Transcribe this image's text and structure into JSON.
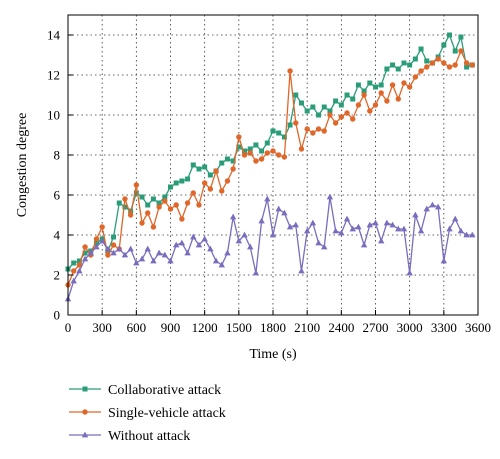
{
  "chart_data": {
    "type": "line",
    "title": "",
    "xlabel": "Time (s)",
    "ylabel": "Congestion degree",
    "xlim": [
      0,
      3600
    ],
    "ylim": [
      0,
      15
    ],
    "xticks": [
      0,
      300,
      600,
      900,
      1200,
      1500,
      1800,
      2100,
      2400,
      2700,
      3000,
      3300,
      3600
    ],
    "yticks": [
      0,
      2,
      4,
      6,
      8,
      10,
      12,
      14
    ],
    "grid": "dotted",
    "legend_position": "bottom",
    "x": [
      0,
      50,
      100,
      150,
      200,
      250,
      300,
      350,
      400,
      450,
      500,
      550,
      600,
      650,
      700,
      750,
      800,
      850,
      900,
      950,
      1000,
      1050,
      1100,
      1150,
      1200,
      1250,
      1300,
      1350,
      1400,
      1450,
      1500,
      1550,
      1600,
      1650,
      1700,
      1750,
      1800,
      1850,
      1900,
      1950,
      2000,
      2050,
      2100,
      2150,
      2200,
      2250,
      2300,
      2350,
      2400,
      2450,
      2500,
      2550,
      2600,
      2650,
      2700,
      2750,
      2800,
      2850,
      2900,
      2950,
      3000,
      3050,
      3100,
      3150,
      3200,
      3250,
      3300,
      3350,
      3400,
      3450,
      3500,
      3550
    ],
    "series": [
      {
        "name": "Collaborative attack",
        "color": "#2a9d78",
        "marker": "square",
        "values": [
          2.3,
          2.6,
          2.7,
          3.1,
          3.2,
          3.6,
          3.8,
          3.2,
          3.9,
          5.6,
          5.4,
          5.2,
          6.1,
          5.9,
          5.5,
          5.8,
          5.6,
          5.9,
          6.4,
          6.6,
          6.7,
          6.8,
          7.5,
          7.3,
          7.4,
          7.0,
          7.2,
          7.6,
          7.8,
          7.7,
          8.4,
          8.2,
          8.3,
          8.5,
          8.2,
          8.6,
          9.2,
          9.1,
          8.9,
          9.5,
          11.0,
          10.6,
          10.2,
          10.4,
          10.0,
          10.4,
          10.2,
          10.7,
          10.5,
          11.0,
          10.8,
          11.5,
          11.2,
          11.6,
          11.4,
          11.5,
          12.3,
          12.5,
          12.3,
          12.6,
          12.5,
          12.8,
          13.3,
          12.7,
          12.6,
          12.9,
          13.5,
          14.0,
          13.2,
          13.9,
          12.4,
          12.5
        ]
      },
      {
        "name": "Single-vehicle attack",
        "color": "#e0672a",
        "marker": "circle",
        "values": [
          1.5,
          2.2,
          2.5,
          3.4,
          3.0,
          3.8,
          4.4,
          3.0,
          3.5,
          3.3,
          5.8,
          5.0,
          6.5,
          4.6,
          5.1,
          4.4,
          5.4,
          5.7,
          5.3,
          5.5,
          4.8,
          5.6,
          6.1,
          5.5,
          6.6,
          6.3,
          7.2,
          6.2,
          6.7,
          7.3,
          8.9,
          8.0,
          8.1,
          7.7,
          7.8,
          8.1,
          8.2,
          8.0,
          7.9,
          12.2,
          9.6,
          8.3,
          9.3,
          9.1,
          9.3,
          9.2,
          10.0,
          9.6,
          9.9,
          10.1,
          9.8,
          10.5,
          11.0,
          10.2,
          10.5,
          11.1,
          10.7,
          11.5,
          10.8,
          11.6,
          11.4,
          11.9,
          12.2,
          12.4,
          12.6,
          12.8,
          12.6,
          12.4,
          12.5,
          13.2,
          12.6,
          12.5
        ]
      },
      {
        "name": "Without attack",
        "color": "#7b6dbd",
        "marker": "triangle",
        "values": [
          0.8,
          1.7,
          2.2,
          2.8,
          3.1,
          3.4,
          3.7,
          3.3,
          3.1,
          3.3,
          3.0,
          3.3,
          2.6,
          2.8,
          3.3,
          2.7,
          3.1,
          3.0,
          2.7,
          3.5,
          3.6,
          3.1,
          3.9,
          3.5,
          3.8,
          3.3,
          2.7,
          2.5,
          3.1,
          4.9,
          3.7,
          4.0,
          3.4,
          2.1,
          4.7,
          5.8,
          4.0,
          5.3,
          5.1,
          4.4,
          4.5,
          2.2,
          4.2,
          4.6,
          3.6,
          3.4,
          5.9,
          4.2,
          4.1,
          4.8,
          4.3,
          4.4,
          3.5,
          4.5,
          4.6,
          3.7,
          4.6,
          4.5,
          4.3,
          4.3,
          2.1,
          5.0,
          4.2,
          5.3,
          5.5,
          5.4,
          2.7,
          4.3,
          4.8,
          4.2,
          4.0,
          4.0
        ]
      }
    ]
  }
}
